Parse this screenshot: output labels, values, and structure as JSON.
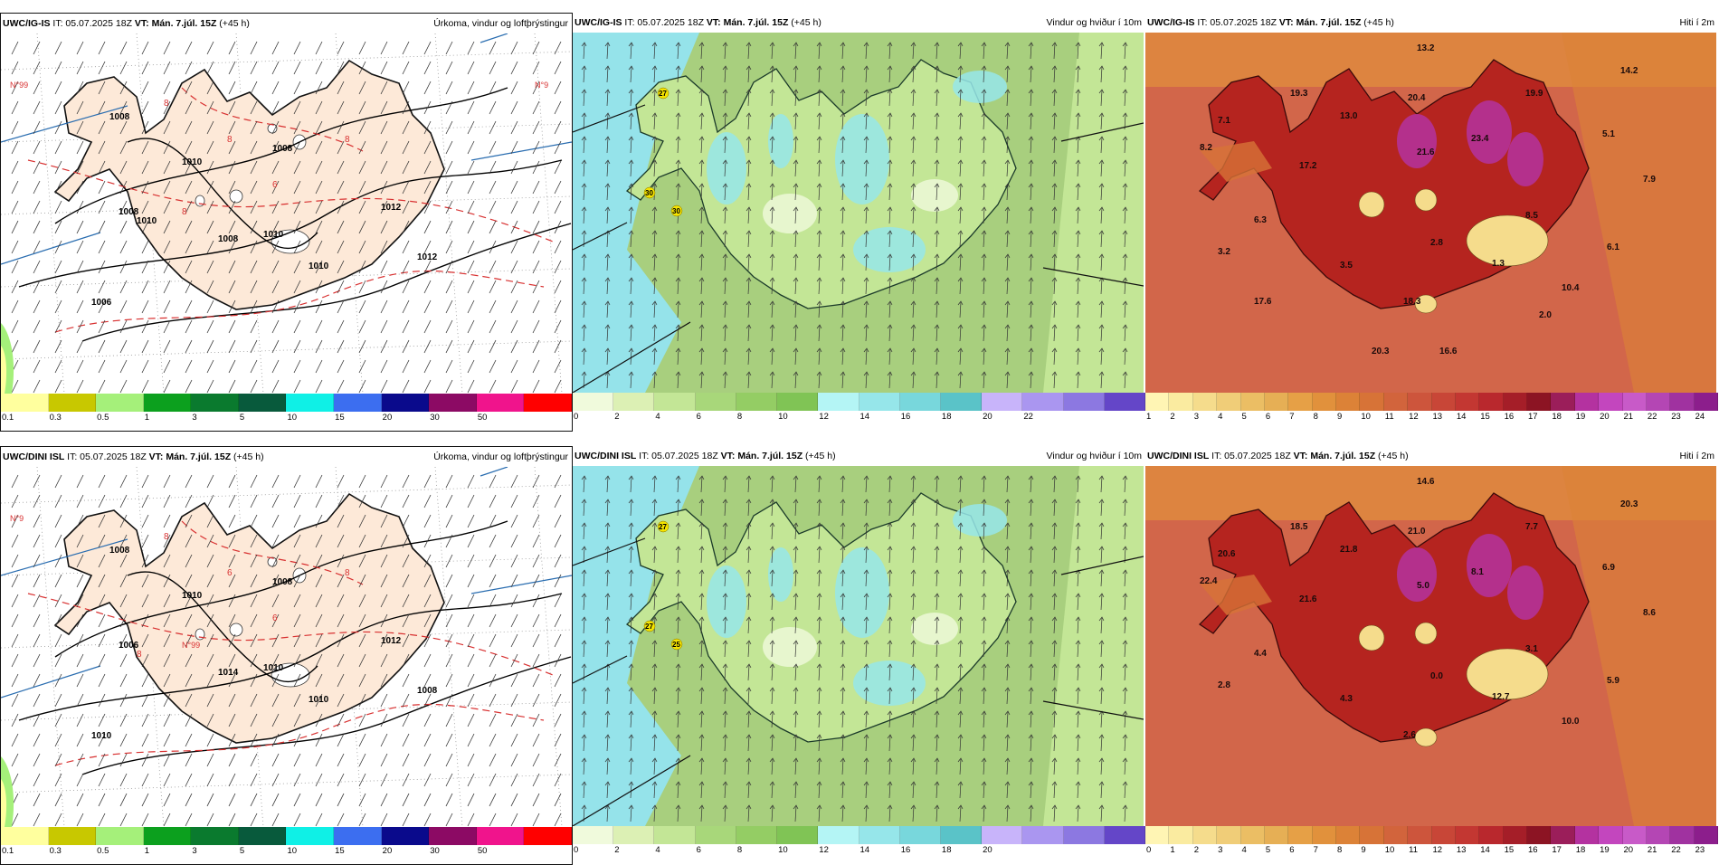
{
  "colors": {
    "land_precip": "#fde9d8",
    "sea_precip": "#ffffff",
    "wind_sea": "#95e3ea",
    "wind_land": "#a8cf7e",
    "temp_sea": "#d2664a",
    "temp_land": "#b5241f"
  },
  "panels": [
    {
      "id": "top-precip",
      "type": "precip",
      "model": "UWC/IG-IS",
      "it": "IT: 05.07.2025 18Z",
      "vt": "VT: Mán. 7.júl. 15Z",
      "lead": "(+45 h)",
      "right_title": "Úrkoma, vindur og loftþrýstingur",
      "labels": [
        "1008",
        "1008",
        "1008",
        "1010",
        "1010",
        "1012",
        "1012",
        "1010",
        "1008",
        "1006",
        "1010",
        "8",
        "8",
        "8",
        "6",
        "8",
        "N°99",
        "N°9"
      ],
      "colorbar": {
        "colors": [
          "#ffff9e",
          "#c8c800",
          "#a5f07a",
          "#0ca01e",
          "#0a7a2e",
          "#085a3c",
          "#0ff0e6",
          "#3c6ef0",
          "#0a0a8c",
          "#8c0a64",
          "#f0148c",
          "#ff0000"
        ],
        "ticks": [
          "0.1",
          "0.3",
          "0.5",
          "1",
          "3",
          "5",
          "10",
          "15",
          "20",
          "30",
          "50"
        ]
      }
    },
    {
      "id": "top-wind",
      "type": "wind",
      "model": "UWC/IG-IS",
      "it": "IT: 05.07.2025 18Z",
      "vt": "VT: Mán. 7.júl. 15Z",
      "lead": "(+45 h)",
      "right_title": "Vindur og hviður í 10m",
      "labels": [
        "27",
        "30",
        "30"
      ],
      "colorbar": {
        "colors": [
          "#f0fadc",
          "#dcf0b4",
          "#c3e696",
          "#a8d77a",
          "#94cd64",
          "#80c455",
          "#b4f5f5",
          "#96e6ea",
          "#78d7dc",
          "#5ac3c8",
          "#c8b4fa",
          "#aa96f0",
          "#8c78e1",
          "#6446c8"
        ],
        "ticks": [
          "0",
          "2",
          "4",
          "6",
          "8",
          "10",
          "12",
          "14",
          "16",
          "18",
          "20",
          "22"
        ]
      }
    },
    {
      "id": "top-temp",
      "type": "temp",
      "model": "UWC/IG-IS",
      "it": "IT: 05.07.2025 18Z",
      "vt": "VT: Mán. 7.júl. 15Z",
      "lead": "(+45 h)",
      "right_title": "Hiti í 2m",
      "labels": [
        "13.2",
        "14.2",
        "19.3",
        "20.4",
        "19.9",
        "7.1",
        "13.0",
        "8.2",
        "17.2",
        "21.6",
        "23.4",
        "5.1",
        "7.9",
        "8.5",
        "6.3",
        "3.2",
        "3.5",
        "2.8",
        "6.1",
        "1.3",
        "10.4",
        "18.3",
        "2.0",
        "17.6",
        "20.3",
        "16.6"
      ],
      "colorbar": {
        "colors": [
          "#fff5b4",
          "#faeba0",
          "#f5dc8c",
          "#f0cd78",
          "#ebbe64",
          "#e6af55",
          "#e6a046",
          "#e1913c",
          "#dc8237",
          "#d77337",
          "#d2643c",
          "#cd553c",
          "#c84637",
          "#c33732",
          "#b9282d",
          "#a51e28",
          "#8c1423",
          "#9b1e5a",
          "#b432a0",
          "#c346be",
          "#c85ac8",
          "#b446b4",
          "#a032a0",
          "#8c1e8c"
        ],
        "ticks": [
          "1",
          "2",
          "3",
          "4",
          "5",
          "6",
          "7",
          "8",
          "9",
          "10",
          "11",
          "12",
          "13",
          "14",
          "15",
          "16",
          "17",
          "18",
          "19",
          "20",
          "21",
          "22",
          "23",
          "24"
        ]
      }
    },
    {
      "id": "bottom-precip",
      "type": "precip",
      "model": "UWC/DINI ISL",
      "it": "IT: 05.07.2025 18Z",
      "vt": "VT: Mán. 7.júl. 15Z",
      "lead": "(+45 h)",
      "right_title": "Úrkoma, vindur og loftþrýstingur",
      "labels": [
        "1008",
        "1008",
        "1006",
        "1010",
        "1010",
        "1012",
        "1008",
        "1010",
        "1014",
        "1010",
        "8",
        "6",
        "8",
        "8",
        "6",
        "N°99",
        "N°9"
      ],
      "colorbar": {
        "colors": [
          "#ffff9e",
          "#c8c800",
          "#a5f07a",
          "#0ca01e",
          "#0a7a2e",
          "#085a3c",
          "#0ff0e6",
          "#3c6ef0",
          "#0a0a8c",
          "#8c0a64",
          "#f0148c",
          "#ff0000"
        ],
        "ticks": [
          "0.1",
          "0.3",
          "0.5",
          "1",
          "3",
          "5",
          "10",
          "15",
          "20",
          "30",
          "50"
        ]
      }
    },
    {
      "id": "bottom-wind",
      "type": "wind",
      "model": "UWC/DINI ISL",
      "it": "IT: 05.07.2025 18Z",
      "vt": "VT: Mán. 7.júl. 15Z",
      "lead": "(+45 h)",
      "right_title": "Vindur og hviður í 10m",
      "labels": [
        "27",
        "27",
        "25"
      ],
      "colorbar": {
        "colors": [
          "#f0fadc",
          "#dcf0b4",
          "#c3e696",
          "#a8d77a",
          "#94cd64",
          "#80c455",
          "#b4f5f5",
          "#96e6ea",
          "#78d7dc",
          "#5ac3c8",
          "#c8b4fa",
          "#aa96f0",
          "#8c78e1",
          "#6446c8"
        ],
        "ticks": [
          "0",
          "2",
          "4",
          "6",
          "8",
          "10",
          "12",
          "14",
          "16",
          "18",
          "20"
        ]
      }
    },
    {
      "id": "bottom-temp",
      "type": "temp",
      "model": "UWC/DINI ISL",
      "it": "IT: 05.07.2025 18Z",
      "vt": "VT: Mán. 7.júl. 15Z",
      "lead": "(+45 h)",
      "right_title": "Hiti í 2m",
      "labels": [
        "14.6",
        "20.3",
        "18.5",
        "21.0",
        "7.7",
        "20.6",
        "21.8",
        "22.4",
        "21.6",
        "5.0",
        "8.1",
        "6.9",
        "8.6",
        "3.1",
        "4.4",
        "2.8",
        "4.3",
        "0.0",
        "5.9",
        "12.7",
        "10.0",
        "2.6"
      ],
      "colorbar": {
        "colors": [
          "#fff5b4",
          "#faeba0",
          "#f5dc8c",
          "#f0cd78",
          "#ebbe64",
          "#e6af55",
          "#e6a046",
          "#e1913c",
          "#dc8237",
          "#d77337",
          "#d2643c",
          "#cd553c",
          "#c84637",
          "#c33732",
          "#b9282d",
          "#a51e28",
          "#8c1423",
          "#9b1e5a",
          "#b432a0",
          "#c346be",
          "#c85ac8",
          "#b446b4",
          "#a032a0",
          "#8c1e8c"
        ],
        "ticks": [
          "0",
          "1",
          "2",
          "3",
          "4",
          "5",
          "6",
          "7",
          "8",
          "9",
          "10",
          "11",
          "12",
          "13",
          "14",
          "15",
          "16",
          "17",
          "18",
          "19",
          "20",
          "21",
          "22",
          "23"
        ]
      }
    }
  ]
}
